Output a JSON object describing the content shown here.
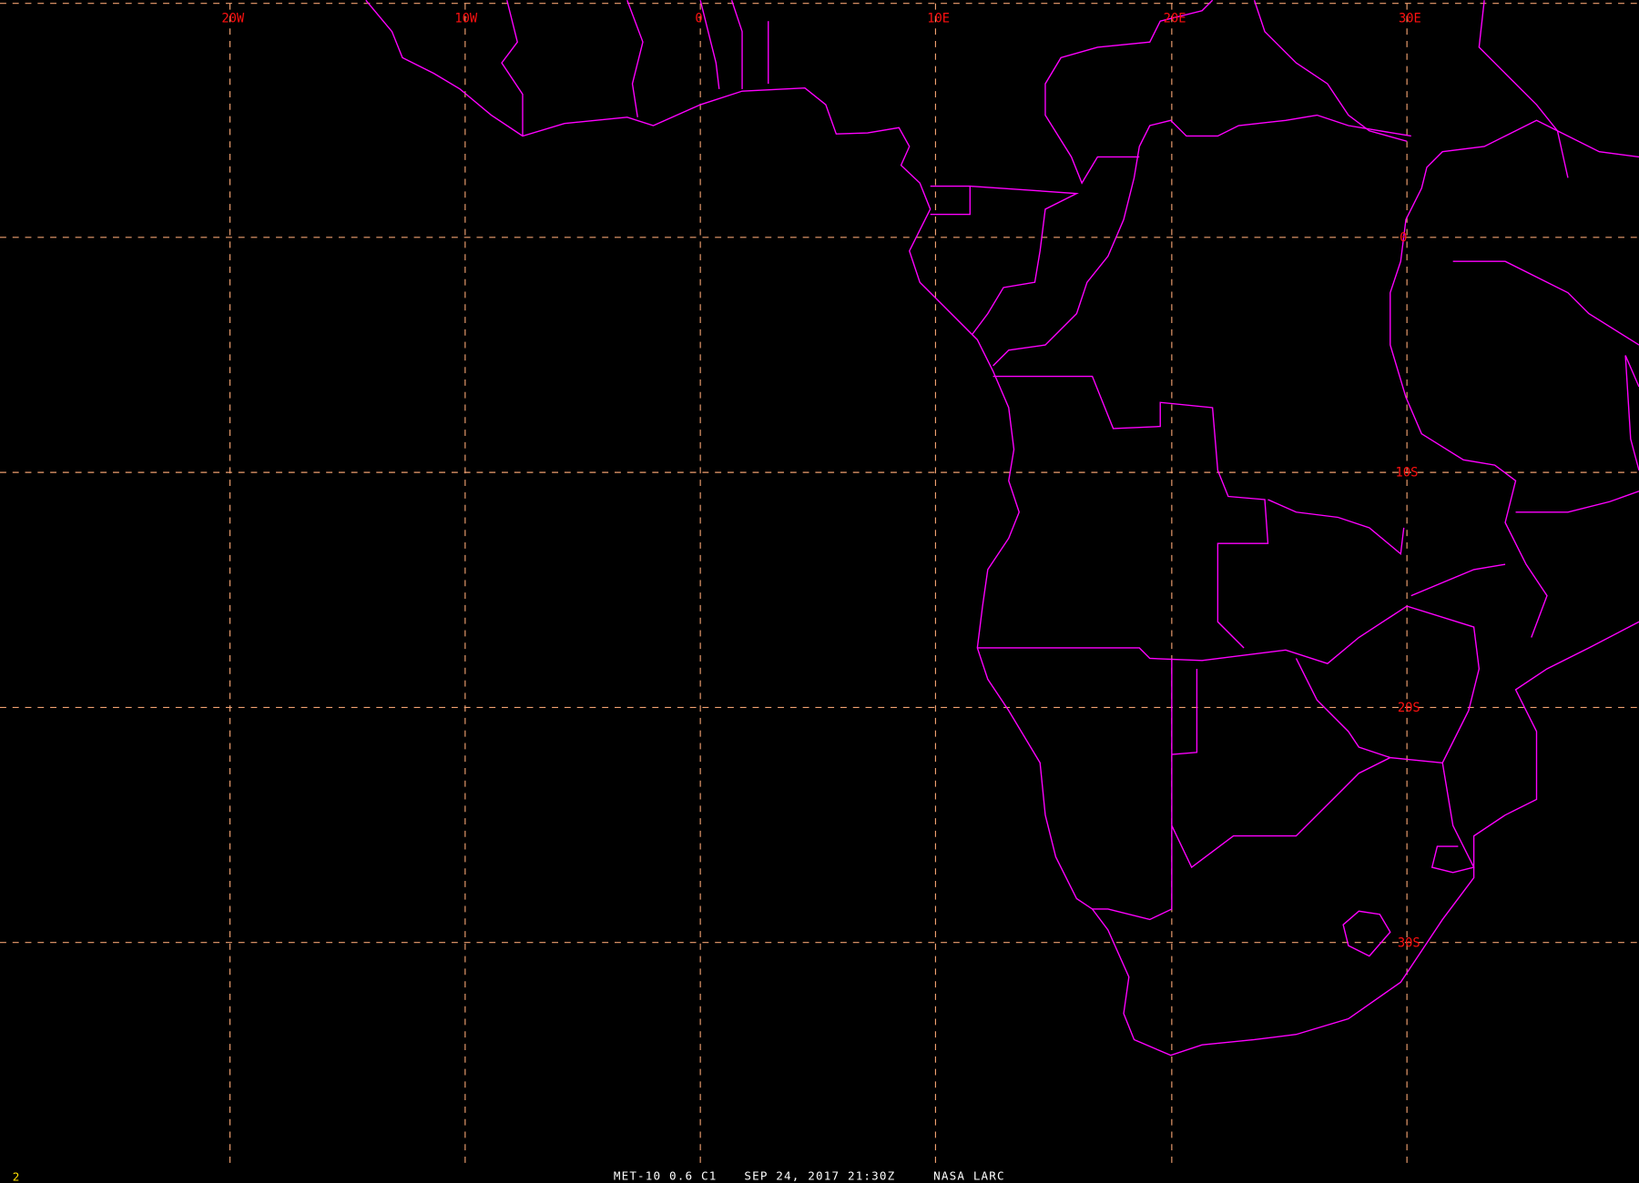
{
  "map": {
    "background": "#000000",
    "colors": {
      "coastline": "#ff00ff",
      "gridline": "#f0a070",
      "grid_label": "#ff1010",
      "frame_number": "#ffe000",
      "footer": "#ffffff"
    },
    "longitude_labels": [
      "20W",
      "10W",
      "0",
      "10E",
      "20E",
      "30E"
    ],
    "latitude_labels": [
      "0",
      "10S",
      "20S",
      "30S"
    ]
  },
  "footer": {
    "frame_number": "2",
    "satellite_channel": "MET-10 0.6 C1",
    "datetime": "SEP 24, 2017 21:30Z",
    "source": "NASA LARC"
  }
}
